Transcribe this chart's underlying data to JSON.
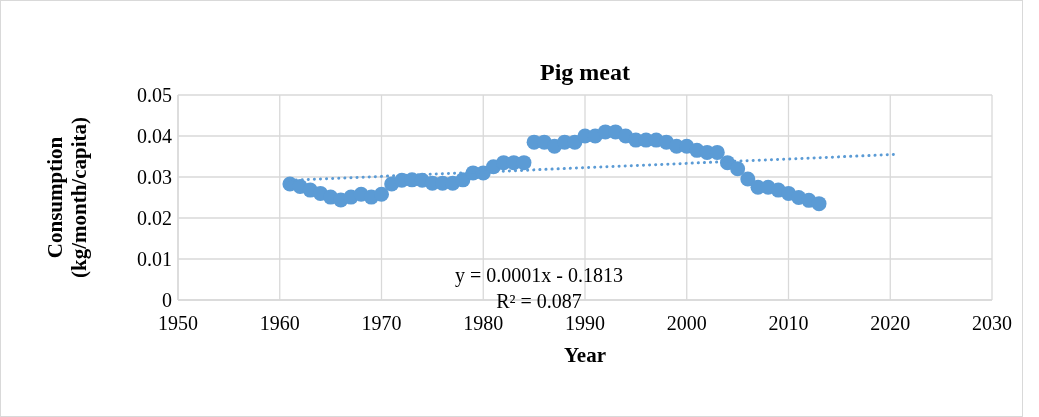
{
  "chart_data": {
    "type": "scatter",
    "title": "Pig meat",
    "xlabel": "Year",
    "ylabel": "Consumption (kg/month/capita)",
    "xlim": [
      1950,
      2030
    ],
    "xticks": [
      1950,
      1960,
      1970,
      1980,
      1990,
      2000,
      2010,
      2020,
      2030
    ],
    "ylim": [
      0,
      0.05
    ],
    "yticks": [
      0,
      0.01,
      0.02,
      0.03,
      0.04,
      0.05
    ],
    "grid": true,
    "marker": "circle",
    "annotations": [
      "y = 0.0001x - 0.1813",
      "R² = 0.087"
    ],
    "series": [
      {
        "color": "#5b9bd5",
        "x": [
          1961,
          1962,
          1963,
          1964,
          1965,
          1966,
          1967,
          1968,
          1969,
          1970,
          1971,
          1972,
          1973,
          1974,
          1975,
          1976,
          1977,
          1978,
          1979,
          1980,
          1981,
          1982,
          1983,
          1984,
          1985,
          1986,
          1987,
          1988,
          1989,
          1990,
          1991,
          1992,
          1993,
          1994,
          1995,
          1996,
          1997,
          1998,
          1999,
          2000,
          2001,
          2002,
          2003,
          2004,
          2005,
          2006,
          2007,
          2008,
          2009,
          2010,
          2011,
          2012,
          2013
        ],
        "values": [
          0.0283,
          0.0277,
          0.0268,
          0.026,
          0.0251,
          0.0244,
          0.0251,
          0.0258,
          0.0251,
          0.0258,
          0.0283,
          0.0292,
          0.0293,
          0.0292,
          0.0285,
          0.0285,
          0.0285,
          0.0293,
          0.031,
          0.031,
          0.0325,
          0.0335,
          0.0335,
          0.0335,
          0.0385,
          0.0385,
          0.0375,
          0.0385,
          0.0385,
          0.04,
          0.04,
          0.041,
          0.041,
          0.04,
          0.039,
          0.039,
          0.039,
          0.0385,
          0.0375,
          0.0375,
          0.0365,
          0.036,
          0.036,
          0.0335,
          0.032,
          0.0295,
          0.0275,
          0.0275,
          0.0268,
          0.026,
          0.025,
          0.0243,
          0.0235
        ]
      },
      {
        "type": "line",
        "color": "#5b9bd5",
        "marker": "none",
        "line_style": "dotted",
        "x": [
          1961,
          2020.5
        ],
        "values": [
          0.0292,
          0.0355
        ]
      }
    ]
  }
}
